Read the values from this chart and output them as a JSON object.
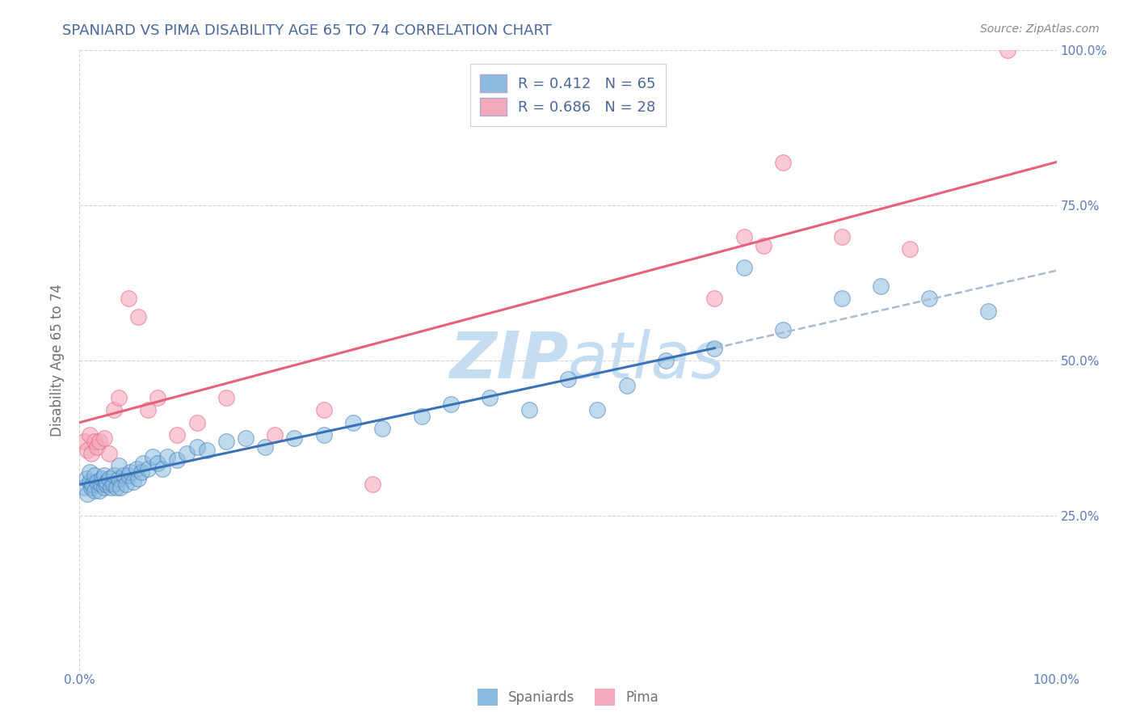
{
  "title": "SPANIARD VS PIMA DISABILITY AGE 65 TO 74 CORRELATION CHART",
  "ylabel": "Disability Age 65 to 74",
  "source_text": "Source: ZipAtlas.com",
  "legend_labels": [
    "Spaniards",
    "Pima"
  ],
  "r_values": [
    0.412,
    0.686
  ],
  "n_values": [
    65,
    28
  ],
  "blue_color": "#8bbcdf",
  "pink_color": "#f4a8bc",
  "blue_line_color": "#3a72b8",
  "pink_line_color": "#e8607a",
  "dashed_color": "#aabbd0",
  "watermark_color": "#c5ddf0",
  "background_color": "#ffffff",
  "grid_color": "#c8c8c8",
  "title_color": "#4a6898",
  "axis_label_color": "#707070",
  "tick_label_color": "#5a7cb8",
  "xlim": [
    0.0,
    1.0
  ],
  "ylim": [
    0.0,
    1.0
  ],
  "blue_scatter_x": [
    0.005,
    0.007,
    0.008,
    0.01,
    0.01,
    0.012,
    0.013,
    0.015,
    0.015,
    0.018,
    0.02,
    0.022,
    0.023,
    0.025,
    0.025,
    0.027,
    0.028,
    0.03,
    0.032,
    0.034,
    0.035,
    0.038,
    0.04,
    0.04,
    0.042,
    0.045,
    0.048,
    0.05,
    0.052,
    0.055,
    0.058,
    0.06,
    0.063,
    0.065,
    0.07,
    0.075,
    0.08,
    0.085,
    0.09,
    0.1,
    0.11,
    0.12,
    0.13,
    0.15,
    0.17,
    0.19,
    0.22,
    0.25,
    0.28,
    0.31,
    0.35,
    0.38,
    0.42,
    0.46,
    0.5,
    0.53,
    0.56,
    0.6,
    0.65,
    0.68,
    0.72,
    0.78,
    0.82,
    0.87,
    0.93
  ],
  "blue_scatter_y": [
    0.295,
    0.31,
    0.285,
    0.305,
    0.32,
    0.295,
    0.3,
    0.315,
    0.29,
    0.305,
    0.29,
    0.3,
    0.31,
    0.295,
    0.315,
    0.3,
    0.305,
    0.31,
    0.295,
    0.3,
    0.315,
    0.295,
    0.31,
    0.33,
    0.295,
    0.315,
    0.3,
    0.315,
    0.32,
    0.305,
    0.325,
    0.31,
    0.32,
    0.335,
    0.325,
    0.345,
    0.335,
    0.325,
    0.345,
    0.34,
    0.35,
    0.36,
    0.355,
    0.37,
    0.375,
    0.36,
    0.375,
    0.38,
    0.4,
    0.39,
    0.41,
    0.43,
    0.44,
    0.42,
    0.47,
    0.42,
    0.46,
    0.5,
    0.52,
    0.65,
    0.55,
    0.6,
    0.62,
    0.6,
    0.58
  ],
  "pink_scatter_x": [
    0.005,
    0.008,
    0.01,
    0.012,
    0.015,
    0.018,
    0.02,
    0.025,
    0.03,
    0.035,
    0.04,
    0.05,
    0.06,
    0.07,
    0.08,
    0.1,
    0.12,
    0.15,
    0.2,
    0.25,
    0.3,
    0.65,
    0.68,
    0.7,
    0.72,
    0.78,
    0.85,
    0.95
  ],
  "pink_scatter_y": [
    0.37,
    0.355,
    0.38,
    0.35,
    0.37,
    0.36,
    0.37,
    0.375,
    0.35,
    0.42,
    0.44,
    0.6,
    0.57,
    0.42,
    0.44,
    0.38,
    0.4,
    0.44,
    0.38,
    0.42,
    0.3,
    0.6,
    0.7,
    0.685,
    0.82,
    0.7,
    0.68,
    1.0
  ],
  "blue_trend_x": [
    0.0,
    0.65
  ],
  "blue_trend_y": [
    0.3,
    0.52
  ],
  "pink_trend_x": [
    0.0,
    1.0
  ],
  "pink_trend_y": [
    0.4,
    0.82
  ],
  "dashed_line_x": [
    0.65,
    1.0
  ],
  "dashed_line_y": [
    0.52,
    0.645
  ],
  "figsize": [
    14.06,
    8.92
  ],
  "dpi": 100
}
